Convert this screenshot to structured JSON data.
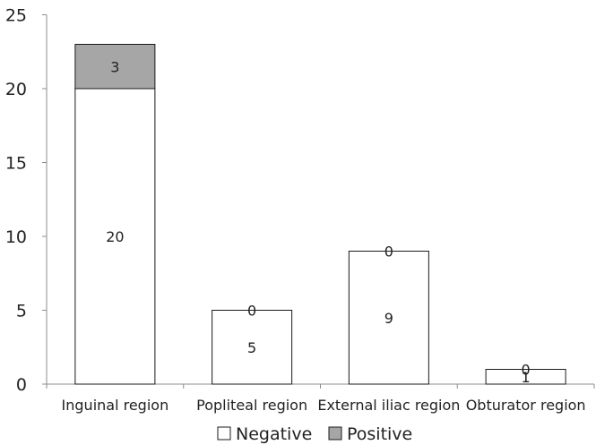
{
  "chart_data": {
    "type": "bar",
    "stacked": true,
    "title": "",
    "xlabel": "",
    "ylabel": "",
    "ylim": [
      0,
      25
    ],
    "yticks": [
      0,
      5,
      10,
      15,
      20,
      25
    ],
    "grid": false,
    "legend_position": "bottom",
    "categories": [
      "Inguinal region",
      "Popliteal region",
      "External iliac region",
      "Obturator region"
    ],
    "series": [
      {
        "name": "Negative",
        "values": [
          20,
          5,
          9,
          1
        ],
        "color": "#ffffff"
      },
      {
        "name": "Positive",
        "values": [
          3,
          0,
          0,
          0
        ],
        "color": "#a6a6a6"
      }
    ]
  }
}
